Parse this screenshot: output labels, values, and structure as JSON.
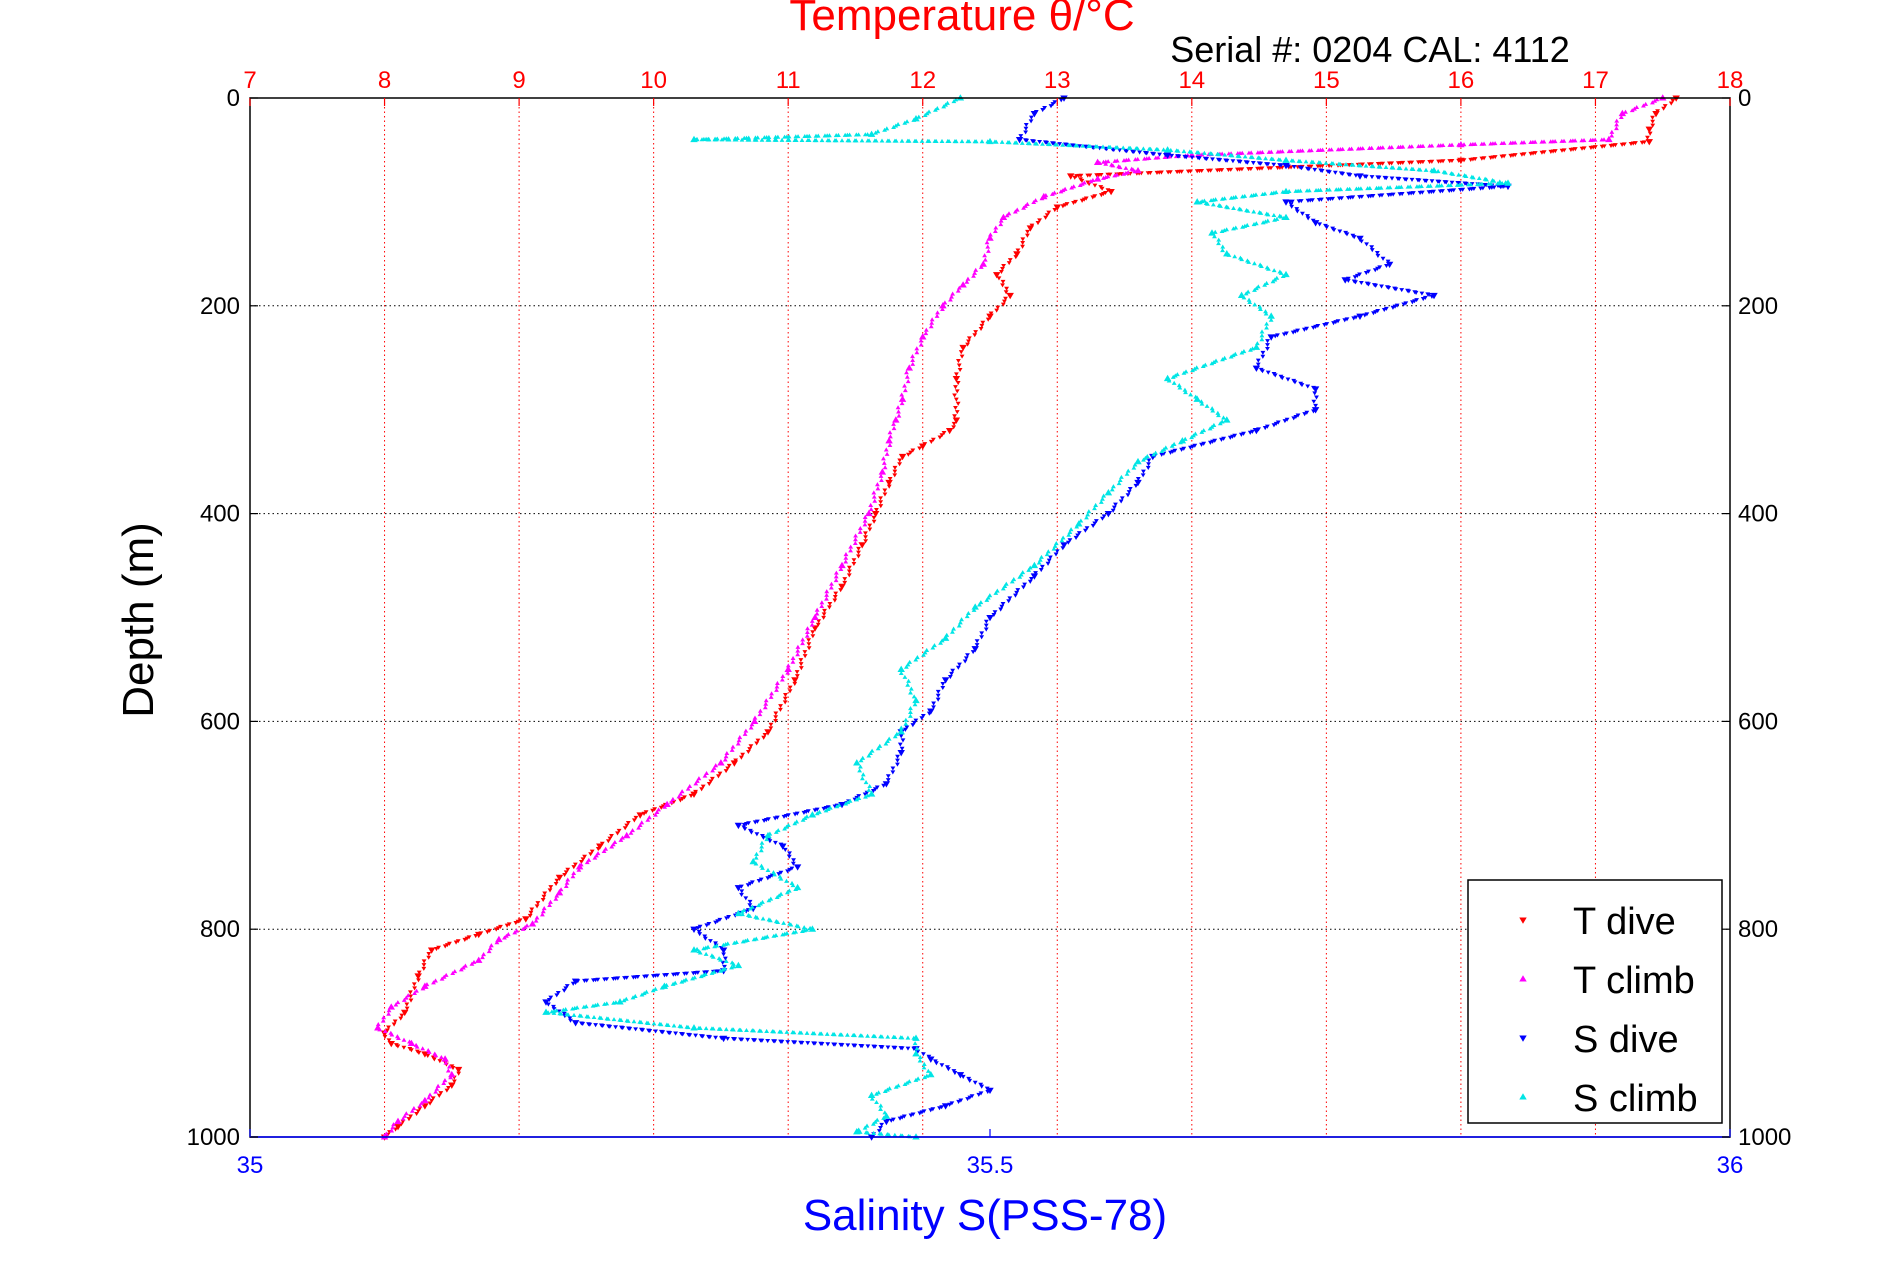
{
  "chart_data": {
    "type": "scatter",
    "title": "Temperature θ/°C",
    "subtitle": "Serial #: 0204  CAL: 4112",
    "ylabel": "Depth (m)",
    "xlabel": "Salinity S(PSS-78)",
    "top_axis": {
      "label": "Temperature θ/°C",
      "range": [
        7,
        18
      ],
      "ticks": [
        7,
        8,
        9,
        10,
        11,
        12,
        13,
        14,
        15,
        16,
        17,
        18
      ],
      "color": "#ff0000"
    },
    "bottom_axis": {
      "label": "Salinity S(PSS-78)",
      "range": [
        35,
        36
      ],
      "ticks": [
        35,
        35.5,
        36
      ],
      "tick_labels": [
        "35",
        "35.5",
        "36"
      ],
      "color": "#0000ff"
    },
    "y_axis": {
      "range": [
        0,
        1000
      ],
      "reversed": true,
      "ticks": [
        0,
        200,
        400,
        600,
        800,
        1000
      ]
    },
    "grid": {
      "x_temperature": true,
      "y_depth": true
    },
    "legend": {
      "position": "bottom-right"
    },
    "series": [
      {
        "name": "T dive",
        "axis": "temperature",
        "color": "#ff0000",
        "marker": "triangle-down",
        "points": [
          [
            17.6,
            0
          ],
          [
            17.45,
            15
          ],
          [
            17.4,
            30
          ],
          [
            17.4,
            42
          ],
          [
            16.0,
            60
          ],
          [
            13.1,
            75
          ],
          [
            13.4,
            90
          ],
          [
            13.0,
            105
          ],
          [
            12.8,
            125
          ],
          [
            12.7,
            150
          ],
          [
            12.55,
            170
          ],
          [
            12.65,
            190
          ],
          [
            12.5,
            210
          ],
          [
            12.3,
            240
          ],
          [
            12.25,
            270
          ],
          [
            12.25,
            310
          ],
          [
            12.2,
            320
          ],
          [
            12.0,
            335
          ],
          [
            11.85,
            345
          ],
          [
            11.75,
            370
          ],
          [
            11.65,
            400
          ],
          [
            11.55,
            430
          ],
          [
            11.4,
            470
          ],
          [
            11.2,
            510
          ],
          [
            11.05,
            560
          ],
          [
            10.85,
            610
          ],
          [
            10.6,
            640
          ],
          [
            10.3,
            670
          ],
          [
            9.9,
            690
          ],
          [
            9.6,
            720
          ],
          [
            9.3,
            750
          ],
          [
            9.05,
            790
          ],
          [
            8.7,
            805
          ],
          [
            8.35,
            820
          ],
          [
            8.25,
            845
          ],
          [
            8.15,
            880
          ],
          [
            8.0,
            900
          ],
          [
            8.05,
            910
          ],
          [
            8.3,
            920
          ],
          [
            8.55,
            935
          ],
          [
            8.5,
            950
          ],
          [
            8.3,
            970
          ],
          [
            8.1,
            990
          ],
          [
            8.0,
            1000
          ]
        ]
      },
      {
        "name": "T climb",
        "axis": "temperature",
        "color": "#ff00ff",
        "marker": "triangle-up",
        "points": [
          [
            17.5,
            0
          ],
          [
            17.2,
            15
          ],
          [
            17.1,
            40
          ],
          [
            16.0,
            45
          ],
          [
            14.0,
            55
          ],
          [
            13.3,
            62
          ],
          [
            13.6,
            70
          ],
          [
            13.3,
            78
          ],
          [
            12.9,
            95
          ],
          [
            12.6,
            115
          ],
          [
            12.5,
            135
          ],
          [
            12.45,
            160
          ],
          [
            12.3,
            180
          ],
          [
            12.15,
            200
          ],
          [
            12.0,
            230
          ],
          [
            11.9,
            260
          ],
          [
            11.85,
            290
          ],
          [
            11.8,
            310
          ],
          [
            11.75,
            330
          ],
          [
            11.7,
            360
          ],
          [
            11.6,
            400
          ],
          [
            11.4,
            450
          ],
          [
            11.2,
            500
          ],
          [
            11.0,
            550
          ],
          [
            10.75,
            600
          ],
          [
            10.5,
            640
          ],
          [
            10.1,
            680
          ],
          [
            9.8,
            710
          ],
          [
            9.45,
            740
          ],
          [
            9.3,
            765
          ],
          [
            9.1,
            795
          ],
          [
            8.85,
            810
          ],
          [
            8.7,
            830
          ],
          [
            8.3,
            855
          ],
          [
            8.05,
            875
          ],
          [
            7.95,
            895
          ],
          [
            8.2,
            910
          ],
          [
            8.45,
            925
          ],
          [
            8.5,
            940
          ],
          [
            8.3,
            965
          ],
          [
            8.1,
            985
          ],
          [
            8.0,
            1000
          ]
        ]
      },
      {
        "name": "S dive",
        "axis": "salinity",
        "color": "#0000ff",
        "marker": "triangle-down",
        "points": [
          [
            35.55,
            0
          ],
          [
            35.53,
            15
          ],
          [
            35.52,
            40
          ],
          [
            35.62,
            55
          ],
          [
            35.7,
            65
          ],
          [
            35.75,
            75
          ],
          [
            35.85,
            85
          ],
          [
            35.7,
            100
          ],
          [
            35.72,
            120
          ],
          [
            35.75,
            135
          ],
          [
            35.77,
            160
          ],
          [
            35.74,
            175
          ],
          [
            35.8,
            190
          ],
          [
            35.75,
            210
          ],
          [
            35.69,
            230
          ],
          [
            35.68,
            260
          ],
          [
            35.72,
            280
          ],
          [
            35.72,
            300
          ],
          [
            35.68,
            320
          ],
          [
            35.61,
            345
          ],
          [
            35.6,
            370
          ],
          [
            35.58,
            400
          ],
          [
            35.55,
            430
          ],
          [
            35.53,
            460
          ],
          [
            35.5,
            500
          ],
          [
            35.49,
            530
          ],
          [
            35.47,
            560
          ],
          [
            35.46,
            590
          ],
          [
            35.44,
            610
          ],
          [
            35.44,
            630
          ],
          [
            35.43,
            660
          ],
          [
            35.4,
            680
          ],
          [
            35.33,
            700
          ],
          [
            35.36,
            720
          ],
          [
            35.37,
            740
          ],
          [
            35.33,
            760
          ],
          [
            35.34,
            780
          ],
          [
            35.3,
            800
          ],
          [
            35.32,
            820
          ],
          [
            35.32,
            840
          ],
          [
            35.22,
            850
          ],
          [
            35.2,
            870
          ],
          [
            35.22,
            890
          ],
          [
            35.32,
            905
          ],
          [
            35.45,
            915
          ],
          [
            35.46,
            925
          ],
          [
            35.48,
            940
          ],
          [
            35.5,
            955
          ],
          [
            35.47,
            970
          ],
          [
            35.43,
            985
          ],
          [
            35.42,
            1000
          ]
        ]
      },
      {
        "name": "S climb",
        "axis": "salinity",
        "color": "#00e5e5",
        "marker": "triangle-up",
        "points": [
          [
            35.48,
            0
          ],
          [
            35.45,
            20
          ],
          [
            35.42,
            35
          ],
          [
            35.3,
            40
          ],
          [
            35.5,
            42
          ],
          [
            35.62,
            50
          ],
          [
            35.7,
            60
          ],
          [
            35.8,
            70
          ],
          [
            35.85,
            82
          ],
          [
            35.7,
            90
          ],
          [
            35.64,
            100
          ],
          [
            35.7,
            115
          ],
          [
            35.65,
            130
          ],
          [
            35.66,
            150
          ],
          [
            35.7,
            170
          ],
          [
            35.67,
            190
          ],
          [
            35.69,
            210
          ],
          [
            35.68,
            240
          ],
          [
            35.62,
            270
          ],
          [
            35.64,
            290
          ],
          [
            35.66,
            310
          ],
          [
            35.63,
            330
          ],
          [
            35.6,
            350
          ],
          [
            35.58,
            380
          ],
          [
            35.56,
            410
          ],
          [
            35.53,
            450
          ],
          [
            35.49,
            490
          ],
          [
            35.47,
            520
          ],
          [
            35.44,
            550
          ],
          [
            35.45,
            580
          ],
          [
            35.44,
            610
          ],
          [
            35.41,
            640
          ],
          [
            35.42,
            670
          ],
          [
            35.38,
            690
          ],
          [
            35.35,
            710
          ],
          [
            35.34,
            735
          ],
          [
            35.37,
            760
          ],
          [
            35.33,
            785
          ],
          [
            35.38,
            800
          ],
          [
            35.3,
            820
          ],
          [
            35.33,
            835
          ],
          [
            35.28,
            855
          ],
          [
            35.25,
            870
          ],
          [
            35.2,
            880
          ],
          [
            35.3,
            895
          ],
          [
            35.45,
            905
          ],
          [
            35.45,
            920
          ],
          [
            35.46,
            940
          ],
          [
            35.42,
            960
          ],
          [
            35.43,
            980
          ],
          [
            35.41,
            995
          ],
          [
            35.45,
            1000
          ]
        ]
      }
    ]
  }
}
